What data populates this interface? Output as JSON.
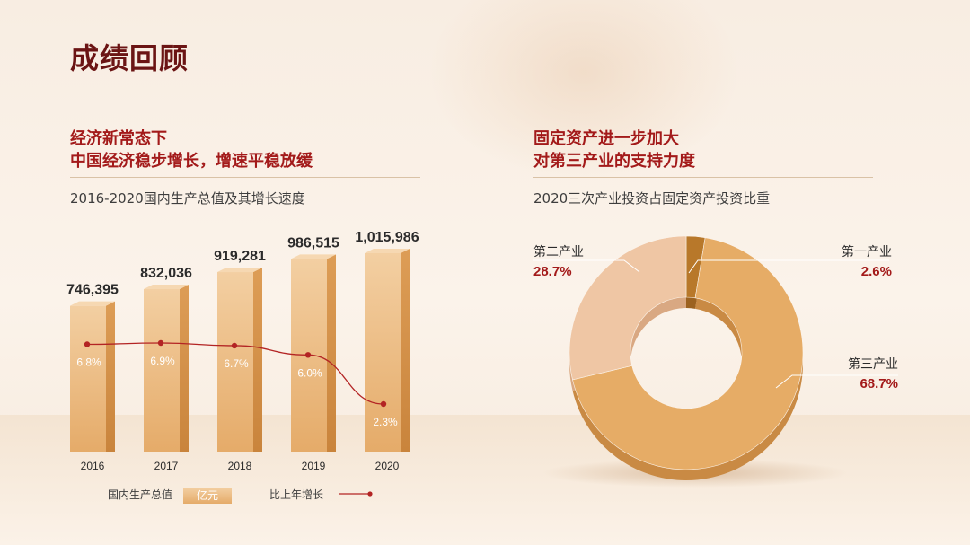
{
  "page_title": "成绩回顾",
  "left": {
    "heading_lines": [
      "经济新常态下",
      "中国经济稳步增长，增速平稳放缓"
    ],
    "subtitle": "2016-2020国内生产总值及其增长速度",
    "legend": {
      "bar_label": "国内生产总值",
      "bar_unit": "亿元",
      "line_label": "比上年增长"
    }
  },
  "right": {
    "heading_lines": [
      "固定资产进一步加大",
      "对第三产业的支持力度"
    ],
    "subtitle": "2020三次产业投资占固定资产投资比重"
  },
  "colors": {
    "title": "#6b1414",
    "accent": "#a31a1a",
    "bar": "#e6b074",
    "line": "#b32424"
  },
  "chart_data": [
    {
      "type": "bar",
      "categories": [
        "2016",
        "2017",
        "2018",
        "2019",
        "2020"
      ],
      "series": [
        {
          "name": "国内生产总值",
          "values": [
            746395,
            832036,
            919281,
            986515,
            1015986
          ],
          "labels": [
            "746,395",
            "832,036",
            "919,281",
            "986,515",
            "1,015,986"
          ]
        },
        {
          "name": "比上年增长",
          "type": "line",
          "values": [
            6.8,
            6.9,
            6.7,
            6.0,
            2.3
          ],
          "labels": [
            "6.8%",
            "6.9%",
            "6.7%",
            "6.0%",
            "2.3%"
          ]
        }
      ],
      "unit": "亿元"
    },
    {
      "type": "pie",
      "donut": true,
      "slices": [
        {
          "label": "第一产业",
          "value": 2.6,
          "value_label": "2.6%",
          "color": "#b8782a"
        },
        {
          "label": "第三产业",
          "value": 68.7,
          "value_label": "68.7%",
          "color": "#e6ac66"
        },
        {
          "label": "第二产业",
          "value": 28.7,
          "value_label": "28.7%",
          "color": "#efc6a4"
        }
      ]
    }
  ]
}
